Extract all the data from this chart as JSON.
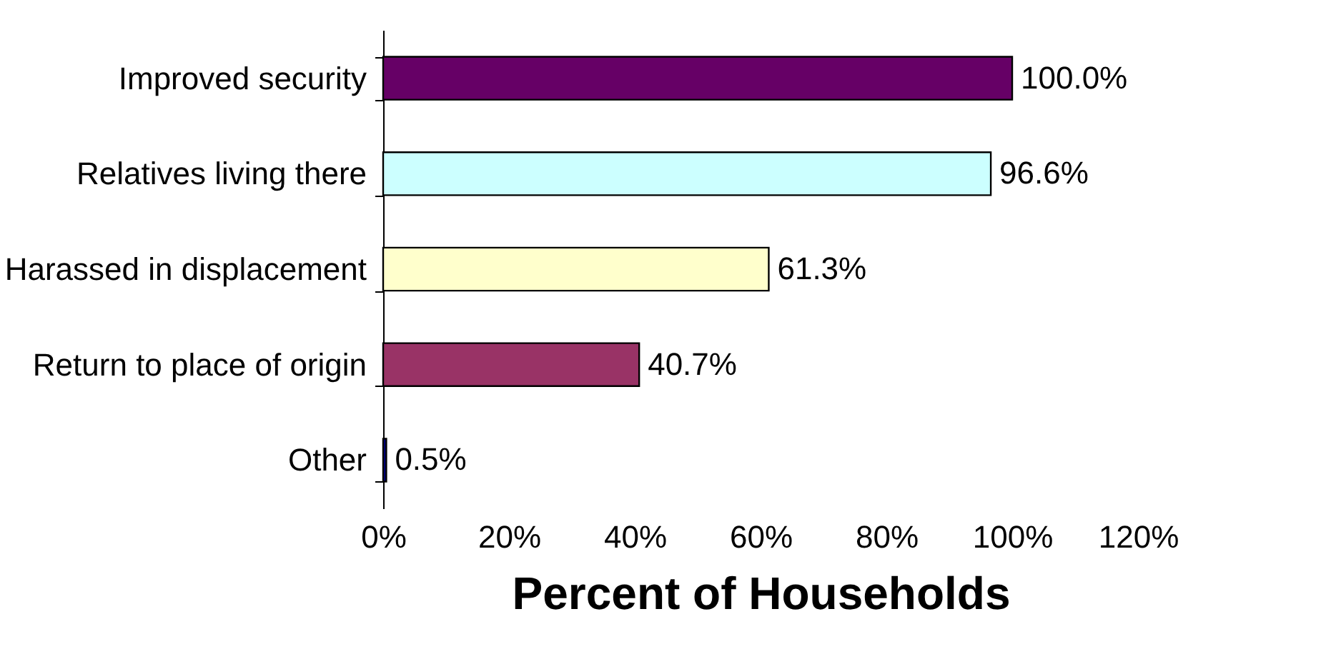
{
  "chart_data": {
    "type": "bar",
    "orientation": "horizontal",
    "xlabel": "Percent of Households",
    "categories": [
      "Improved security",
      "Relatives living there",
      "Harassed in displacement",
      "Return to place of origin",
      "Other"
    ],
    "values": [
      100.0,
      96.6,
      61.3,
      40.7,
      0.5
    ],
    "colors": [
      "#660066",
      "#ccffff",
      "#ffffcc",
      "#993366",
      "#000080"
    ],
    "value_labels": [
      "100.0%",
      "96.6%",
      "61.3%",
      "40.7%",
      "0.5%"
    ],
    "xlim": [
      0,
      120
    ],
    "xticks": [
      {
        "value": 0,
        "label": "0%"
      },
      {
        "value": 20,
        "label": "20%"
      },
      {
        "value": 40,
        "label": "40%"
      },
      {
        "value": 60,
        "label": "60%"
      },
      {
        "value": 80,
        "label": "80%"
      },
      {
        "value": 100,
        "label": "100%"
      },
      {
        "value": 120,
        "label": "120%"
      }
    ],
    "grid": false
  }
}
